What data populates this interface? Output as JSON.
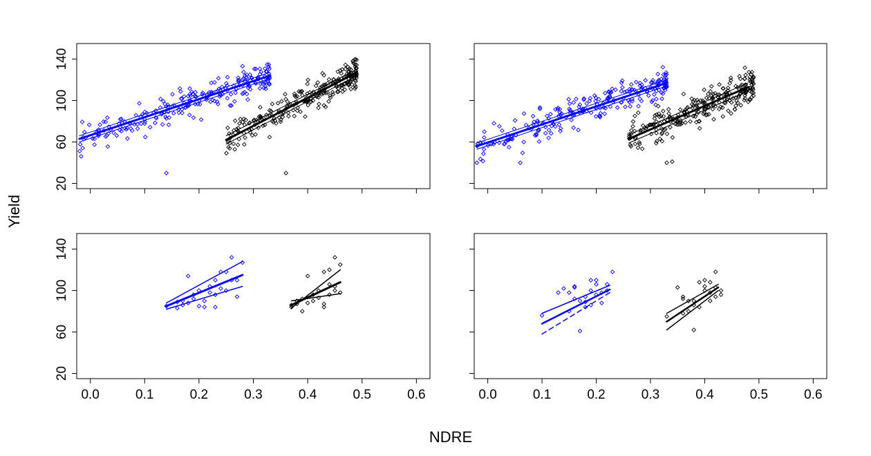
{
  "chart_data": {
    "type": "scatter",
    "xlabel": "NDRE",
    "ylabel": "Yield",
    "xlim": [
      -0.025,
      0.625
    ],
    "ylim": [
      15,
      155
    ],
    "x_ticks": [
      0.0,
      0.1,
      0.2,
      0.3,
      0.4,
      0.5,
      0.6
    ],
    "y_ticks": [
      20,
      60,
      100,
      140
    ],
    "x_tick_labels": [
      "0.0",
      "0.1",
      "0.2",
      "0.3",
      "0.4",
      "0.5",
      "0.6"
    ],
    "y_tick_labels": [
      "20",
      "60",
      "100",
      "140"
    ],
    "colors": {
      "blue": "#0000ff",
      "black": "#000000"
    },
    "panels": [
      {
        "position": "top-left",
        "show_y_labels": true,
        "show_x_labels": false,
        "series": [
          {
            "color": "blue",
            "cloud": {
              "x_range": [
                -0.02,
                0.33
              ],
              "line": [
                -0.02,
                63,
                0.33,
                124
              ],
              "spread": 12,
              "n": 230,
              "seed": 11
            },
            "outliers": [
              [
                0.14,
                30
              ]
            ],
            "lines": [
              {
                "x1": -0.02,
                "y1": 63,
                "x2": 0.33,
                "y2": 124,
                "width": 3,
                "dash": false
              },
              {
                "x1": -0.02,
                "y1": 66,
                "x2": 0.33,
                "y2": 127,
                "width": 1,
                "dash": false
              },
              {
                "x1": -0.02,
                "y1": 60,
                "x2": 0.33,
                "y2": 121,
                "width": 1,
                "dash": false
              }
            ]
          },
          {
            "color": "black",
            "cloud": {
              "x_range": [
                0.25,
                0.49
              ],
              "line": [
                0.25,
                62,
                0.49,
                127
              ],
              "spread": 12,
              "n": 250,
              "seed": 23
            },
            "outliers": [
              [
                0.36,
                30
              ]
            ],
            "lines": [
              {
                "x1": 0.25,
                "y1": 62,
                "x2": 0.49,
                "y2": 127,
                "width": 3,
                "dash": false
              },
              {
                "x1": 0.25,
                "y1": 66,
                "x2": 0.49,
                "y2": 130,
                "width": 1,
                "dash": false
              },
              {
                "x1": 0.25,
                "y1": 58,
                "x2": 0.49,
                "y2": 124,
                "width": 1,
                "dash": false
              }
            ]
          }
        ]
      },
      {
        "position": "top-right",
        "show_y_labels": false,
        "show_x_labels": false,
        "series": [
          {
            "color": "blue",
            "cloud": {
              "x_range": [
                -0.02,
                0.33
              ],
              "line": [
                -0.02,
                55,
                0.33,
                117
              ],
              "spread": 13,
              "n": 230,
              "seed": 37
            },
            "outliers": [
              [
                -0.02,
                40
              ],
              [
                0.06,
                40
              ]
            ],
            "lines": [
              {
                "x1": -0.02,
                "y1": 56,
                "x2": 0.33,
                "y2": 117,
                "width": 3,
                "dash": false
              },
              {
                "x1": -0.02,
                "y1": 59,
                "x2": 0.33,
                "y2": 120,
                "width": 1,
                "dash": false
              },
              {
                "x1": -0.02,
                "y1": 53,
                "x2": 0.33,
                "y2": 114,
                "width": 1,
                "dash": false
              }
            ]
          },
          {
            "color": "black",
            "cloud": {
              "x_range": [
                0.26,
                0.49
              ],
              "line": [
                0.26,
                64,
                0.48,
                112
              ],
              "spread": 13,
              "n": 260,
              "seed": 51
            },
            "outliers": [
              [
                0.33,
                40
              ],
              [
                0.34,
                41
              ]
            ],
            "lines": [
              {
                "x1": 0.26,
                "y1": 63,
                "x2": 0.48,
                "y2": 113,
                "width": 3,
                "dash": false
              },
              {
                "x1": 0.26,
                "y1": 67,
                "x2": 0.48,
                "y2": 117,
                "width": 1,
                "dash": false
              },
              {
                "x1": 0.26,
                "y1": 59,
                "x2": 0.48,
                "y2": 109,
                "width": 1,
                "dash": false
              }
            ]
          }
        ]
      },
      {
        "position": "bottom-left",
        "show_y_labels": true,
        "show_x_labels": true,
        "series": [
          {
            "color": "blue",
            "points": [
              [
                0.14,
                85
              ],
              [
                0.16,
                83
              ],
              [
                0.16,
                89
              ],
              [
                0.17,
                90
              ],
              [
                0.18,
                88
              ],
              [
                0.18,
                114
              ],
              [
                0.19,
                92
              ],
              [
                0.2,
                85
              ],
              [
                0.2,
                100
              ],
              [
                0.21,
                84
              ],
              [
                0.21,
                90
              ],
              [
                0.22,
                98
              ],
              [
                0.22,
                104
              ],
              [
                0.23,
                110
              ],
              [
                0.23,
                96
              ],
              [
                0.24,
                118
              ],
              [
                0.24,
                102
              ],
              [
                0.25,
                118
              ],
              [
                0.25,
                100
              ],
              [
                0.26,
                110
              ],
              [
                0.26,
                132
              ],
              [
                0.27,
                110
              ],
              [
                0.27,
                94
              ],
              [
                0.28,
                127
              ],
              [
                0.23,
                84
              ],
              [
                0.19,
                96
              ],
              [
                0.17,
                86
              ]
            ],
            "lines": [
              {
                "x1": 0.14,
                "y1": 85,
                "x2": 0.28,
                "y2": 115,
                "width": 3,
                "dash": false
              },
              {
                "x1": 0.14,
                "y1": 88,
                "x2": 0.28,
                "y2": 128,
                "width": 1.5,
                "dash": false
              },
              {
                "x1": 0.14,
                "y1": 82,
                "x2": 0.28,
                "y2": 104,
                "width": 1.5,
                "dash": false
              }
            ]
          },
          {
            "color": "black",
            "points": [
              [
                0.37,
                84
              ],
              [
                0.38,
                90
              ],
              [
                0.38,
                87
              ],
              [
                0.39,
                80
              ],
              [
                0.39,
                92
              ],
              [
                0.4,
                114
              ],
              [
                0.4,
                88
              ],
              [
                0.41,
                96
              ],
              [
                0.42,
                93
              ],
              [
                0.42,
                100
              ],
              [
                0.43,
                84
              ],
              [
                0.43,
                87
              ],
              [
                0.44,
                120
              ],
              [
                0.44,
                106
              ],
              [
                0.44,
                96
              ],
              [
                0.45,
                104
              ],
              [
                0.45,
                132
              ],
              [
                0.45,
                100
              ],
              [
                0.46,
                98
              ],
              [
                0.46,
                125
              ],
              [
                0.41,
                90
              ],
              [
                0.43,
                118
              ],
              [
                0.37,
                86
              ]
            ],
            "lines": [
              {
                "x1": 0.37,
                "y1": 86,
                "x2": 0.46,
                "y2": 108,
                "width": 3,
                "dash": false
              },
              {
                "x1": 0.37,
                "y1": 83,
                "x2": 0.46,
                "y2": 120,
                "width": 1.5,
                "dash": false
              },
              {
                "x1": 0.37,
                "y1": 90,
                "x2": 0.46,
                "y2": 97,
                "width": 1.5,
                "dash": false
              }
            ]
          }
        ]
      },
      {
        "position": "bottom-right",
        "show_y_labels": false,
        "show_x_labels": true,
        "series": [
          {
            "color": "blue",
            "points": [
              [
                0.1,
                76
              ],
              [
                0.13,
                98
              ],
              [
                0.14,
                102
              ],
              [
                0.15,
                98
              ],
              [
                0.15,
                80
              ],
              [
                0.16,
                104
              ],
              [
                0.16,
                103
              ],
              [
                0.17,
                90
              ],
              [
                0.17,
                61
              ],
              [
                0.18,
                94
              ],
              [
                0.18,
                89
              ],
              [
                0.18,
                84
              ],
              [
                0.19,
                100
              ],
              [
                0.19,
                110
              ],
              [
                0.2,
                106
              ],
              [
                0.2,
                96
              ],
              [
                0.2,
                110
              ],
              [
                0.21,
                98
              ],
              [
                0.21,
                88
              ],
              [
                0.22,
                106
              ],
              [
                0.22,
                100
              ],
              [
                0.23,
                118
              ],
              [
                0.16,
                92
              ],
              [
                0.19,
                86
              ]
            ],
            "lines": [
              {
                "x1": 0.1,
                "y1": 68,
                "x2": 0.225,
                "y2": 101,
                "width": 2.5,
                "dash": false
              },
              {
                "x1": 0.1,
                "y1": 78,
                "x2": 0.225,
                "y2": 105,
                "width": 1.5,
                "dash": false
              },
              {
                "x1": 0.1,
                "y1": 58,
                "x2": 0.225,
                "y2": 98,
                "width": 1.5,
                "dash": true
              }
            ]
          },
          {
            "color": "black",
            "points": [
              [
                0.33,
                75
              ],
              [
                0.35,
                103
              ],
              [
                0.36,
                94
              ],
              [
                0.36,
                92
              ],
              [
                0.37,
                90
              ],
              [
                0.37,
                80
              ],
              [
                0.38,
                90
              ],
              [
                0.38,
                62
              ],
              [
                0.39,
                84
              ],
              [
                0.39,
                108
              ],
              [
                0.4,
                104
              ],
              [
                0.4,
                100
              ],
              [
                0.4,
                110
              ],
              [
                0.41,
                108
              ],
              [
                0.41,
                98
              ],
              [
                0.42,
                94
              ],
              [
                0.42,
                103
              ],
              [
                0.42,
                118
              ],
              [
                0.43,
                96
              ],
              [
                0.43,
                100
              ],
              [
                0.38,
                86
              ],
              [
                0.41,
                90
              ],
              [
                0.36,
                78
              ]
            ],
            "lines": [
              {
                "x1": 0.33,
                "y1": 70,
                "x2": 0.425,
                "y2": 103,
                "width": 2.5,
                "dash": false
              },
              {
                "x1": 0.33,
                "y1": 78,
                "x2": 0.425,
                "y2": 106,
                "width": 1.5,
                "dash": false
              },
              {
                "x1": 0.33,
                "y1": 62,
                "x2": 0.425,
                "y2": 100,
                "width": 1.5,
                "dash": false
              }
            ]
          }
        ]
      }
    ]
  }
}
